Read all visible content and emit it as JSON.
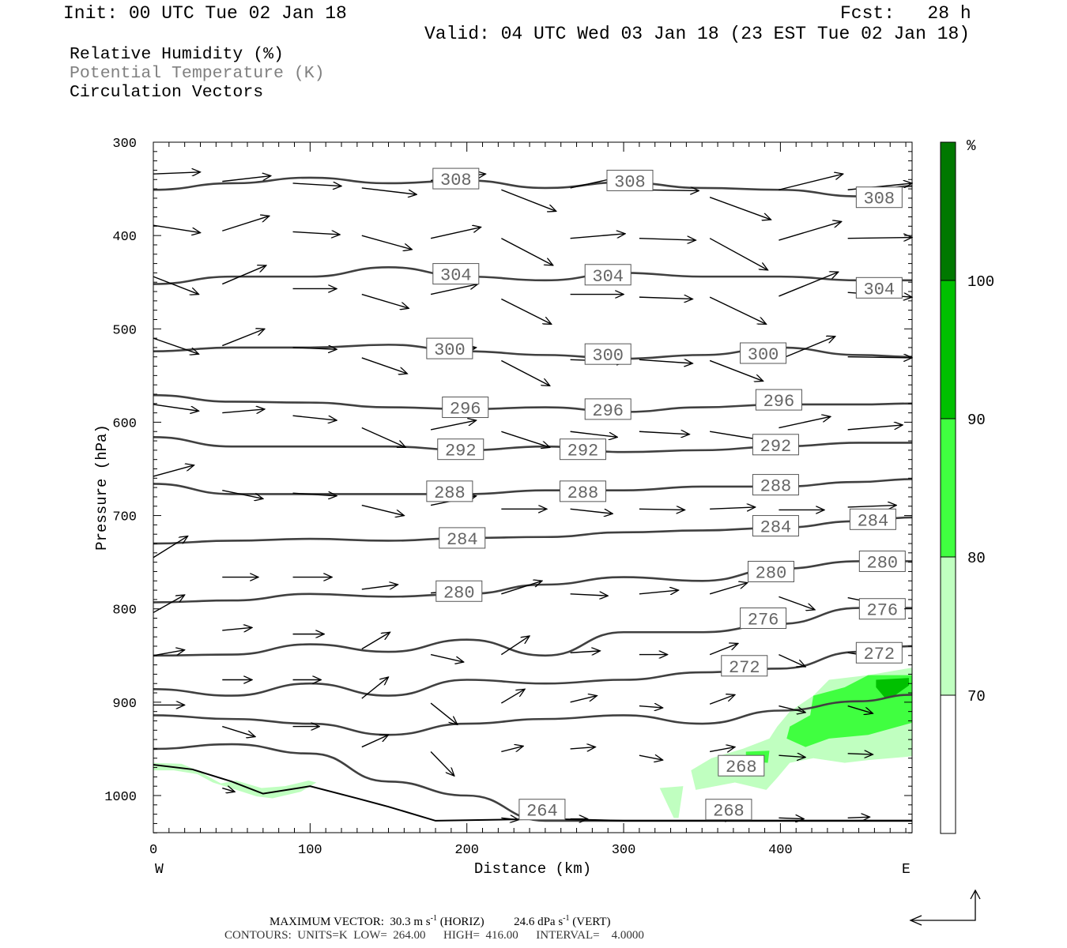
{
  "header": {
    "init": "Init: 00 UTC Tue 02 Jan 18",
    "fcst": "Fcst:   28 h",
    "valid": "Valid: 04 UTC Wed 03 Jan 18 (23 EST Tue 02 Jan 18)"
  },
  "legend": {
    "rh": "Relative Humidity (%)",
    "theta": "Potential Temperature (K)",
    "vectors": "Circulation Vectors"
  },
  "colors": {
    "rh_70_80": "#c0ffc0",
    "rh_80_90": "#40ff40",
    "rh_90_100": "#00c000",
    "rh_100": "#007800",
    "contour": "#404040",
    "theta_label": "#808080"
  },
  "footer": {
    "max_vector_label": "MAXIMUM VECTOR:",
    "horiz": "30.3 m s",
    "horiz_exp": "-1",
    "horiz_tag": "(HORIZ)",
    "vert": "24.6 dPa s",
    "vert_exp": "-1",
    "vert_tag": "(VERT)",
    "contours": "CONTOURS:  UNITS=K  LOW=  264.00      HIGH=  416.00      INTERVAL=    4.0000"
  },
  "chart_data": {
    "type": "cross-section",
    "xlabel": "Distance (km)",
    "ylabel": "Pressure (hPa)",
    "x_left_label": "W",
    "x_right_label": "E",
    "xlim": [
      0,
      484
    ],
    "ylim": [
      1040,
      300
    ],
    "xticks": [
      "0",
      "100",
      "200",
      "300",
      "400"
    ],
    "xtick_values": [
      0,
      100,
      200,
      300,
      400
    ],
    "yticks": [
      "300",
      "400",
      "500",
      "600",
      "700",
      "800",
      "900",
      "1000"
    ],
    "ytick_values": [
      300,
      400,
      500,
      600,
      700,
      800,
      900,
      1000
    ],
    "colorbar": {
      "unit": "%",
      "levels": [
        "70",
        "80",
        "90",
        "100"
      ],
      "level_values": [
        70,
        80,
        90,
        100
      ]
    },
    "rh_regions": [
      {
        "range": "70-80",
        "points": [
          [
            484,
            863
          ],
          [
            456,
            871
          ],
          [
            431,
            876
          ],
          [
            421,
            893
          ],
          [
            406,
            910
          ],
          [
            398,
            926
          ],
          [
            393,
            939
          ],
          [
            376,
            950
          ],
          [
            356,
            960
          ],
          [
            343,
            973
          ],
          [
            346,
            994
          ],
          [
            371,
            986
          ],
          [
            391,
            994
          ],
          [
            398,
            981
          ],
          [
            406,
            965
          ],
          [
            421,
            960
          ],
          [
            441,
            965
          ],
          [
            456,
            962
          ],
          [
            484,
            958
          ]
        ]
      },
      {
        "range": "70-80",
        "points": [
          [
            323,
            992
          ],
          [
            338,
            990
          ],
          [
            335,
            1024
          ],
          [
            332,
            1024
          ]
        ]
      },
      {
        "range": "70-80",
        "points": [
          [
            0,
            965
          ],
          [
            18,
            966
          ],
          [
            28,
            973
          ],
          [
            43,
            987
          ],
          [
            53,
            984
          ],
          [
            69,
            992
          ],
          [
            84,
            990
          ],
          [
            99,
            984
          ],
          [
            104,
            986
          ],
          [
            94,
            996
          ],
          [
            76,
            1003
          ],
          [
            66,
            1001
          ],
          [
            53,
            994
          ],
          [
            38,
            986
          ],
          [
            28,
            977
          ],
          [
            13,
            973
          ],
          [
            0,
            973
          ]
        ]
      },
      {
        "range": "80-90",
        "points": [
          [
            484,
            871
          ],
          [
            456,
            871
          ],
          [
            441,
            884
          ],
          [
            421,
            893
          ],
          [
            419,
            914
          ],
          [
            406,
            926
          ],
          [
            404,
            939
          ],
          [
            416,
            948
          ],
          [
            431,
            939
          ],
          [
            456,
            935
          ],
          [
            484,
            922
          ]
        ]
      },
      {
        "range": "80-90",
        "points": [
          [
            378,
            953
          ],
          [
            393,
            952
          ],
          [
            392,
            965
          ],
          [
            378,
            963
          ]
        ]
      },
      {
        "range": "90-100",
        "points": [
          [
            461,
            876
          ],
          [
            482,
            874
          ],
          [
            482,
            882
          ],
          [
            472,
            894
          ],
          [
            467,
            896
          ],
          [
            461,
            884
          ]
        ]
      }
    ],
    "theta_x": [
      0,
      50,
      100,
      150,
      200,
      250,
      300,
      350,
      400,
      450,
      484
    ],
    "theta_contours": [
      {
        "theta": 308,
        "p": [
          351,
          344,
          338,
          344,
          341,
          349,
          343,
          349,
          351,
          358,
          347
        ]
      },
      {
        "theta": 304,
        "p": [
          452,
          444,
          444,
          434,
          444,
          448,
          440,
          444,
          444,
          448,
          448
        ]
      },
      {
        "theta": 300,
        "p": [
          524,
          520,
          520,
          517,
          524,
          528,
          532,
          528,
          520,
          528,
          530
        ]
      },
      {
        "theta": 296,
        "p": [
          571,
          578,
          579,
          584,
          586,
          584,
          589,
          584,
          581,
          581,
          580
        ]
      },
      {
        "theta": 292,
        "p": [
          616,
          626,
          626,
          626,
          630,
          626,
          632,
          630,
          626,
          622,
          622
        ]
      },
      {
        "theta": 288,
        "p": [
          666,
          677,
          677,
          677,
          677,
          673,
          673,
          669,
          669,
          664,
          661
        ]
      },
      {
        "theta": 284,
        "p": [
          730,
          727,
          725,
          727,
          724,
          723,
          718,
          716,
          713,
          706,
          702
        ]
      },
      {
        "theta": 280,
        "p": [
          793,
          791,
          784,
          787,
          784,
          774,
          766,
          770,
          757,
          749,
          749
        ]
      },
      {
        "theta": 276,
        "p": [
          850,
          849,
          838,
          846,
          833,
          850,
          825,
          825,
          816,
          799,
          799
        ]
      },
      {
        "theta": 272,
        "p": [
          886,
          893,
          880,
          893,
          876,
          880,
          876,
          868,
          864,
          846,
          840
        ]
      },
      {
        "theta": 268,
        "p": [
          914,
          918,
          923,
          935,
          923,
          918,
          914,
          923,
          909,
          899,
          892
        ]
      },
      {
        "theta": 264,
        "p": [
          950,
          945,
          955,
          985,
          1000,
          1027,
          1027,
          1027,
          1027,
          1027,
          1027
        ]
      }
    ],
    "terrain": [
      [
        0,
        967
      ],
      [
        25,
        972
      ],
      [
        50,
        985
      ],
      [
        70,
        998
      ],
      [
        100,
        990
      ],
      [
        130,
        1003
      ],
      [
        150,
        1012
      ],
      [
        180,
        1027
      ],
      [
        250,
        1025
      ],
      [
        300,
        1027
      ],
      [
        484,
        1027
      ]
    ],
    "theta_labels": [
      {
        "text": "308",
        "x": 193,
        "p": 339
      },
      {
        "text": "308",
        "x": 304,
        "p": 341
      },
      {
        "text": "308",
        "x": 463,
        "p": 359
      },
      {
        "text": "304",
        "x": 193,
        "p": 441
      },
      {
        "text": "304",
        "x": 290,
        "p": 442
      },
      {
        "text": "304",
        "x": 463,
        "p": 456
      },
      {
        "text": "300",
        "x": 189,
        "p": 521
      },
      {
        "text": "300",
        "x": 290,
        "p": 527
      },
      {
        "text": "300",
        "x": 389,
        "p": 526
      },
      {
        "text": "296",
        "x": 199,
        "p": 584
      },
      {
        "text": "296",
        "x": 290,
        "p": 586
      },
      {
        "text": "296",
        "x": 399,
        "p": 576
      },
      {
        "text": "292",
        "x": 196,
        "p": 629
      },
      {
        "text": "292",
        "x": 274,
        "p": 629
      },
      {
        "text": "292",
        "x": 397,
        "p": 624
      },
      {
        "text": "288",
        "x": 189,
        "p": 674
      },
      {
        "text": "288",
        "x": 274,
        "p": 674
      },
      {
        "text": "288",
        "x": 397,
        "p": 667
      },
      {
        "text": "284",
        "x": 197,
        "p": 724
      },
      {
        "text": "284",
        "x": 397,
        "p": 711
      },
      {
        "text": "284",
        "x": 459,
        "p": 704
      },
      {
        "text": "280",
        "x": 195,
        "p": 781
      },
      {
        "text": "280",
        "x": 394,
        "p": 760
      },
      {
        "text": "280",
        "x": 465,
        "p": 749
      },
      {
        "text": "276",
        "x": 389,
        "p": 810
      },
      {
        "text": "276",
        "x": 465,
        "p": 800
      },
      {
        "text": "272",
        "x": 377,
        "p": 861
      },
      {
        "text": "272",
        "x": 463,
        "p": 847
      },
      {
        "text": "268",
        "x": 375,
        "p": 968
      },
      {
        "text": "268",
        "x": 367,
        "p": 1015
      },
      {
        "text": "264",
        "x": 248,
        "p": 1015
      }
    ],
    "vectors": [
      [
        0,
        334,
        30,
        332
      ],
      [
        44,
        342,
        75,
        336
      ],
      [
        89,
        344,
        120,
        347
      ],
      [
        133,
        349,
        168,
        356
      ],
      [
        177,
        341,
        212,
        334
      ],
      [
        222,
        351,
        257,
        374
      ],
      [
        266,
        349,
        301,
        336
      ],
      [
        310,
        351,
        348,
        352
      ],
      [
        355,
        359,
        394,
        383
      ],
      [
        399,
        351,
        440,
        334
      ],
      [
        443,
        351,
        484,
        344
      ],
      [
        0,
        389,
        30,
        397
      ],
      [
        44,
        395,
        74,
        379
      ],
      [
        89,
        396,
        119,
        399
      ],
      [
        133,
        400,
        165,
        415
      ],
      [
        177,
        403,
        209,
        391
      ],
      [
        222,
        403,
        255,
        432
      ],
      [
        266,
        403,
        301,
        398
      ],
      [
        310,
        403,
        346,
        405
      ],
      [
        355,
        403,
        392,
        437
      ],
      [
        399,
        405,
        439,
        385
      ],
      [
        443,
        403,
        484,
        402
      ],
      [
        0,
        444,
        29,
        463
      ],
      [
        44,
        452,
        72,
        432
      ],
      [
        89,
        457,
        117,
        457
      ],
      [
        133,
        463,
        163,
        478
      ],
      [
        177,
        463,
        207,
        452
      ],
      [
        222,
        468,
        254,
        495
      ],
      [
        266,
        463,
        300,
        463
      ],
      [
        310,
        466,
        344,
        468
      ],
      [
        355,
        466,
        391,
        495
      ],
      [
        399,
        465,
        437,
        439
      ],
      [
        443,
        461,
        484,
        466
      ],
      [
        0,
        510,
        29,
        527
      ],
      [
        44,
        518,
        71,
        500
      ],
      [
        89,
        520,
        117,
        522
      ],
      [
        133,
        531,
        162,
        548
      ],
      [
        177,
        527,
        206,
        520
      ],
      [
        222,
        534,
        253,
        561
      ],
      [
        266,
        533,
        301,
        535
      ],
      [
        310,
        533,
        344,
        537
      ],
      [
        355,
        534,
        389,
        556
      ],
      [
        399,
        533,
        435,
        508
      ],
      [
        443,
        530,
        484,
        531
      ],
      [
        0,
        581,
        29,
        588
      ],
      [
        44,
        590,
        71,
        586
      ],
      [
        89,
        593,
        117,
        598
      ],
      [
        133,
        606,
        161,
        627
      ],
      [
        177,
        608,
        206,
        598
      ],
      [
        222,
        610,
        253,
        627
      ],
      [
        266,
        610,
        296,
        616
      ],
      [
        310,
        610,
        342,
        613
      ],
      [
        355,
        610,
        388,
        619
      ],
      [
        399,
        606,
        432,
        594
      ],
      [
        443,
        608,
        478,
        603
      ],
      [
        0,
        658,
        26,
        646
      ],
      [
        44,
        673,
        70,
        682
      ],
      [
        89,
        676,
        117,
        679
      ],
      [
        133,
        689,
        160,
        700
      ],
      [
        177,
        689,
        206,
        679
      ],
      [
        222,
        693,
        251,
        693
      ],
      [
        266,
        693,
        293,
        698
      ],
      [
        310,
        693,
        339,
        694
      ],
      [
        355,
        693,
        384,
        691
      ],
      [
        399,
        694,
        428,
        694
      ],
      [
        443,
        691,
        474,
        689
      ],
      [
        0,
        745,
        22,
        722
      ],
      [
        44,
        766,
        67,
        766
      ],
      [
        89,
        766,
        114,
        766
      ],
      [
        133,
        779,
        156,
        774
      ],
      [
        177,
        783,
        206,
        779
      ],
      [
        222,
        784,
        248,
        770
      ],
      [
        266,
        784,
        290,
        786
      ],
      [
        310,
        784,
        335,
        780
      ],
      [
        355,
        784,
        379,
        772
      ],
      [
        399,
        787,
        422,
        801
      ],
      [
        443,
        788,
        466,
        796
      ],
      [
        0,
        804,
        20,
        785
      ],
      [
        44,
        823,
        63,
        820
      ],
      [
        89,
        827,
        109,
        827
      ],
      [
        133,
        843,
        151,
        825
      ],
      [
        177,
        849,
        198,
        857
      ],
      [
        222,
        849,
        240,
        829
      ],
      [
        266,
        847,
        285,
        845
      ],
      [
        310,
        849,
        328,
        849
      ],
      [
        355,
        849,
        373,
        837
      ],
      [
        399,
        849,
        416,
        862
      ],
      [
        443,
        847,
        462,
        852
      ],
      [
        0,
        850,
        20,
        844
      ],
      [
        44,
        876,
        63,
        876
      ],
      [
        89,
        876,
        107,
        876
      ],
      [
        133,
        896,
        150,
        873
      ],
      [
        177,
        901,
        194,
        924
      ],
      [
        222,
        901,
        237,
        886
      ],
      [
        266,
        900,
        283,
        893
      ],
      [
        310,
        904,
        325,
        906
      ],
      [
        355,
        902,
        371,
        892
      ],
      [
        399,
        904,
        416,
        911
      ],
      [
        443,
        904,
        459,
        912
      ],
      [
        0,
        903,
        20,
        903
      ],
      [
        44,
        926,
        65,
        937
      ],
      [
        89,
        926,
        106,
        926
      ],
      [
        133,
        948,
        150,
        935
      ],
      [
        177,
        953,
        192,
        979
      ],
      [
        222,
        953,
        236,
        947
      ],
      [
        266,
        950,
        282,
        948
      ],
      [
        310,
        957,
        325,
        962
      ],
      [
        355,
        953,
        371,
        948
      ],
      [
        399,
        957,
        416,
        959
      ],
      [
        443,
        955,
        459,
        956
      ],
      [
        44,
        992,
        52,
        996
      ],
      [
        222,
        1024,
        233,
        1026
      ],
      [
        266,
        1025,
        277,
        1025
      ],
      [
        355,
        1024,
        370,
        1024
      ],
      [
        399,
        1024,
        415,
        1025
      ],
      [
        443,
        1024,
        457,
        1023
      ]
    ]
  }
}
